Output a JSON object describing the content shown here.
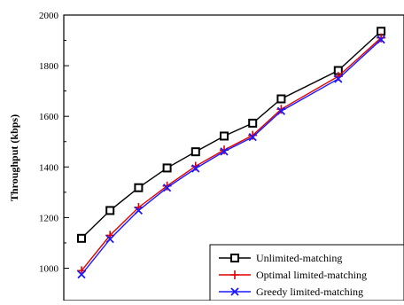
{
  "chart_data": {
    "type": "line",
    "title": "",
    "xlabel": "",
    "ylabel": "Throughput (kbps)",
    "ylim": [
      900,
      2000
    ],
    "xlim": [
      0,
      12
    ],
    "yticks": [
      1000,
      1200,
      1400,
      1600,
      1800,
      2000
    ],
    "yticklabels": [
      "1000",
      "1200",
      "1400",
      "1600",
      "1800",
      "2000"
    ],
    "grid": false,
    "legend_position": "bottom-right",
    "x": [
      1,
      2,
      3,
      4,
      5,
      6,
      7,
      8,
      10,
      11.5
    ],
    "series": [
      {
        "name": "Unlimited-matching",
        "color": "#000000",
        "marker": "square",
        "values": [
          1118,
          1228,
          1318,
          1396,
          1460,
          1522,
          1573,
          1669,
          1781,
          1936
        ]
      },
      {
        "name": "Optimal limited-matching",
        "color": "#e00000",
        "marker": "plus",
        "values": [
          990,
          1130,
          1240,
          1325,
          1403,
          1467,
          1525,
          1628,
          1758,
          1910
        ]
      },
      {
        "name": "Greedy limited-matching",
        "color": "#1a1aff",
        "marker": "x",
        "values": [
          975,
          1115,
          1228,
          1318,
          1394,
          1461,
          1518,
          1621,
          1748,
          1903
        ]
      }
    ]
  }
}
